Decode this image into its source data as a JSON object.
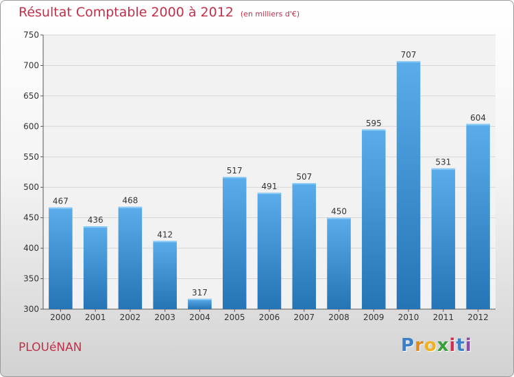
{
  "header": {
    "title": "Résultat Comptable 2000 à 2012",
    "subtitle": "(en milliers d'€)"
  },
  "footer": {
    "commune": "PLOUéNAN",
    "logo_letters": [
      "P",
      "r",
      "o",
      "x",
      "i",
      "t",
      "i"
    ]
  },
  "chart_data": {
    "type": "bar",
    "title": "Résultat Comptable 2000 à 2012",
    "subtitle": "(en milliers d'€)",
    "categories": [
      "2000",
      "2001",
      "2002",
      "2003",
      "2004",
      "2005",
      "2006",
      "2007",
      "2008",
      "2009",
      "2010",
      "2011",
      "2012"
    ],
    "values": [
      467,
      436,
      468,
      412,
      317,
      517,
      491,
      507,
      450,
      595,
      707,
      531,
      604
    ],
    "ylim": [
      300,
      750
    ],
    "yticks": [
      300,
      350,
      400,
      450,
      500,
      550,
      600,
      650,
      700,
      750
    ],
    "grid": true,
    "bar_color": "#4a9ede",
    "bar_color_dark": "#2d78bb",
    "data_labels": true
  }
}
